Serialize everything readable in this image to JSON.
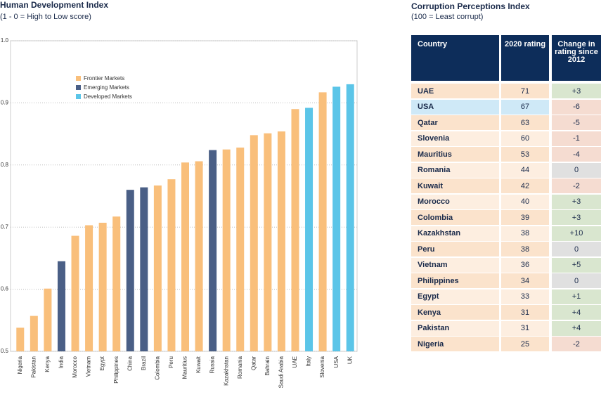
{
  "chart_data": {
    "type": "bar",
    "title": "Human Development Index",
    "subtitle": "(1 - 0 = High to Low score)",
    "categories": [
      "Nigeria",
      "Pakistan",
      "Kenya",
      "India",
      "Morocco",
      "Vietnam",
      "Egypt",
      "Philippines",
      "China",
      "Brazil",
      "Colombia",
      "Peru",
      "Mauritius",
      "Kuwait",
      "Russia",
      "Kazakhstan",
      "Romania",
      "Qatar",
      "Bahrain",
      "Saudi Arabia",
      "UAE",
      "Italy",
      "Slovenia",
      "USA",
      "UK"
    ],
    "series": [
      {
        "name": "Frontier Markets",
        "color": "#f9bf7b",
        "values": [
          0.538,
          0.557,
          0.601,
          null,
          0.686,
          0.703,
          0.707,
          0.717,
          null,
          null,
          0.767,
          0.777,
          0.804,
          0.806,
          null,
          0.825,
          0.828,
          0.848,
          0.851,
          0.854,
          0.89,
          null,
          0.917,
          null,
          null
        ]
      },
      {
        "name": "Emerging Markets",
        "color": "#4a5f86",
        "values": [
          null,
          null,
          null,
          0.645,
          null,
          null,
          null,
          null,
          0.76,
          0.764,
          null,
          null,
          null,
          null,
          0.824,
          null,
          null,
          null,
          null,
          null,
          null,
          null,
          null,
          null,
          null
        ]
      },
      {
        "name": "Developed Markets",
        "color": "#5bc5e8",
        "values": [
          null,
          null,
          null,
          null,
          null,
          null,
          null,
          null,
          null,
          null,
          null,
          null,
          null,
          null,
          null,
          null,
          null,
          null,
          null,
          null,
          null,
          0.892,
          null,
          0.926,
          0.93
        ]
      }
    ],
    "ylim": [
      0.5,
      1.0
    ],
    "yticks": [
      0.5,
      0.6,
      0.7,
      0.8,
      0.9,
      {
        "value": 1.0,
        "label": "1.0"
      }
    ],
    "grid": true
  },
  "table": {
    "title": "Corruption Perceptions Index",
    "subtitle": "(100 = Least corrupt)",
    "header": [
      "Country",
      "2020 rating",
      "Change in rating since 2012"
    ],
    "rows": [
      [
        "UAE",
        71,
        "+3"
      ],
      [
        "USA",
        67,
        "-6"
      ],
      [
        "Qatar",
        63,
        "-5"
      ],
      [
        "Slovenia",
        60,
        "-1"
      ],
      [
        "Mauritius",
        53,
        "-4"
      ],
      [
        "Romania",
        44,
        "0"
      ],
      [
        "Kuwait",
        42,
        "-2"
      ],
      [
        "Morocco",
        40,
        "+3"
      ],
      [
        "Colombia",
        39,
        "+3"
      ],
      [
        "Kazakhstan",
        38,
        "+10"
      ],
      [
        "Peru",
        38,
        "0"
      ],
      [
        "Vietnam",
        36,
        "+5"
      ],
      [
        "Philippines",
        34,
        "0"
      ],
      [
        "Egypt",
        33,
        "+1"
      ],
      [
        "Kenya",
        31,
        "+4"
      ],
      [
        "Pakistan",
        31,
        "+4"
      ],
      [
        "Nigeria",
        25,
        "-2"
      ]
    ],
    "row_colors": [
      "#fbe3cc",
      "#cfe9f7",
      "#fbe3cc",
      "#fdeee0",
      "#fbe3cc",
      "#fdeee0",
      "#fbe3cc",
      "#fdeee0",
      "#fbe3cc",
      "#fdeee0",
      "#fbe3cc",
      "#fdeee0",
      "#fbe3cc",
      "#fdeee0",
      "#fbe3cc",
      "#fdeee0",
      "#fbe3cc"
    ]
  }
}
